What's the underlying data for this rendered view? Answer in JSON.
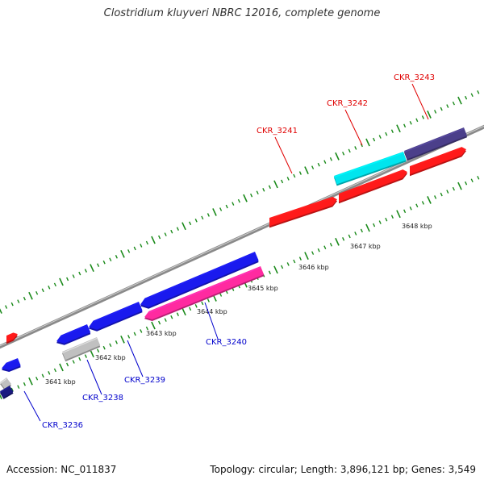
{
  "title": "Clostridium kluyveri NBRC 12016, complete genome",
  "footer": {
    "accession": "Accession: NC_011837",
    "summary": "Topology: circular; Length: 3,896,121 bp; Genes: 3,549"
  },
  "colors": {
    "backbone": "#8a8a8a",
    "tick_dots": "#1a8a1a",
    "label_red": "#e00000",
    "label_blue": "#0000cc"
  },
  "ticks": [
    "3641 kbp",
    "3642 kbp",
    "3643 kbp",
    "3644 kbp",
    "3645 kbp",
    "3646 kbp",
    "3647 kbp",
    "3648 kbp"
  ],
  "gene_labels": [
    {
      "text": "CKR_3241",
      "color": "#e00000"
    },
    {
      "text": "CKR_3242",
      "color": "#e00000"
    },
    {
      "text": "CKR_3243",
      "color": "#e00000"
    },
    {
      "text": "CKR_3240",
      "color": "#0000cc"
    },
    {
      "text": "CKR_3239",
      "color": "#0000cc"
    },
    {
      "text": "CKR_3238",
      "color": "#0000cc"
    },
    {
      "text": "CKR_3236",
      "color": "#0000cc"
    }
  ],
  "features": [
    {
      "name": "gene-forward-strand-3241",
      "color": "#ff1a1a"
    },
    {
      "name": "gene-forward-strand-3242",
      "color": "#ff1a1a"
    },
    {
      "name": "gene-forward-strand-red-right",
      "color": "#ff1a1a"
    },
    {
      "name": "gene-forward-strand-3242-cyan",
      "color": "#00e5ee"
    },
    {
      "name": "gene-forward-strand-3243",
      "color": "#4b3f8a"
    },
    {
      "name": "gene-forward-strand-red-small",
      "color": "#ff1a1a"
    },
    {
      "name": "gene-reverse-strand-3240",
      "color": "#ff2aa0"
    },
    {
      "name": "gene-reverse-strand-blue-long",
      "color": "#1a1aee"
    },
    {
      "name": "gene-reverse-strand-blue-mid",
      "color": "#1a1aee"
    },
    {
      "name": "gene-reverse-strand-blue-short",
      "color": "#1a1aee"
    },
    {
      "name": "gene-reverse-strand-3238",
      "color": "#c0c0c0"
    },
    {
      "name": "gene-reverse-strand-left-blue",
      "color": "#1a1aee"
    },
    {
      "name": "gene-reverse-strand-left-grey",
      "color": "#c0c0c0"
    },
    {
      "name": "gene-reverse-strand-left-navy",
      "color": "#1a1a80"
    }
  ]
}
